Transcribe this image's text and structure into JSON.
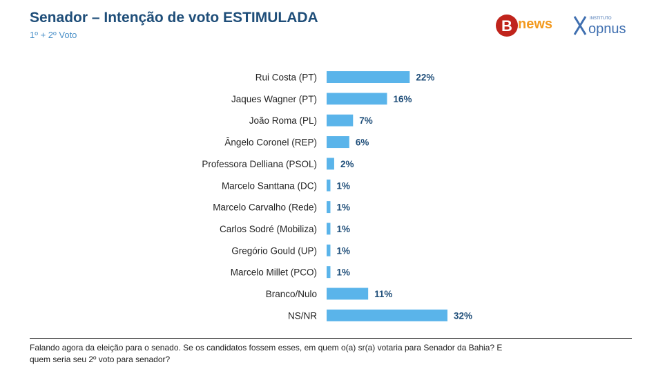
{
  "header": {
    "title": "Senador – Intenção de voto ESTIMULADA",
    "subtitle": "1º + 2º Voto"
  },
  "logos": {
    "bnews_letter": "B",
    "bnews_text": "news",
    "opnus_small": "INSTITUTO",
    "opnus_text": "opnus",
    "bnews_red": "#c0241c",
    "bnews_orange": "#f39a1f",
    "opnus_blue": "#3f6fb0"
  },
  "chart_data": {
    "type": "bar",
    "orientation": "horizontal",
    "title": "Senador – Intenção de voto ESTIMULADA",
    "subtitle": "1º + 2º Voto",
    "categories": [
      "Rui Costa (PT)",
      "Jaques Wagner (PT)",
      "João Roma (PL)",
      "Ângelo Coronel (REP)",
      "Professora Delliana (PSOL)",
      "Marcelo Santtana (DC)",
      "Marcelo Carvalho (Rede)",
      "Carlos Sodré (Mobiliza)",
      "Gregório Gould (UP)",
      "Marcelo Millet (PCO)",
      "Branco/Nulo",
      "NS/NR"
    ],
    "values": [
      22,
      16,
      7,
      6,
      2,
      1,
      1,
      1,
      1,
      1,
      11,
      32
    ],
    "value_labels": [
      "22%",
      "16%",
      "7%",
      "6%",
      "2%",
      "1%",
      "1%",
      "1%",
      "1%",
      "1%",
      "11%",
      "32%"
    ],
    "xlim": [
      0,
      32
    ],
    "bar_color": "#5ab4ea",
    "label_color": "#1f4e79",
    "grid": false,
    "legend": "none"
  },
  "footer": {
    "question": "Falando agora da eleição para o senado. Se os candidatos fossem esses, em quem o(a) sr(a) votaria para Senador da Bahia? E quem seria seu 2º voto para senador?"
  }
}
